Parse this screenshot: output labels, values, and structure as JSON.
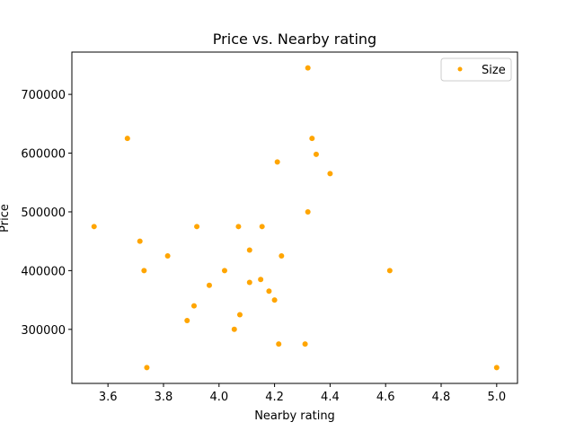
{
  "chart_data": {
    "type": "scatter",
    "title": "Price vs. Nearby rating",
    "xlabel": "Nearby rating",
    "ylabel": "Price",
    "xlim": [
      3.47,
      5.075
    ],
    "ylim": [
      208000,
      772000
    ],
    "xticks": [
      3.6,
      3.8,
      4.0,
      4.2,
      4.4,
      4.6,
      4.8,
      5.0
    ],
    "xtick_labels": [
      "3.6",
      "3.8",
      "4.0",
      "4.2",
      "4.4",
      "4.6",
      "4.8",
      "5.0"
    ],
    "yticks": [
      300000,
      400000,
      500000,
      600000,
      700000
    ],
    "ytick_labels": [
      "300000",
      "400000",
      "500000",
      "600000",
      "700000"
    ],
    "grid": false,
    "legend": {
      "position": "top-right",
      "entries": [
        "Size"
      ]
    },
    "series": [
      {
        "name": "Size",
        "color": "#ffa500",
        "x": [
          4.32,
          3.67,
          4.335,
          4.35,
          4.21,
          4.4,
          4.32,
          3.55,
          3.92,
          4.07,
          4.155,
          3.715,
          4.11,
          3.815,
          4.225,
          3.73,
          4.02,
          4.615,
          4.15,
          4.11,
          3.965,
          4.18,
          4.2,
          3.91,
          4.075,
          3.885,
          4.055,
          4.215,
          4.31,
          3.74,
          5.0
        ],
        "y": [
          745000,
          625000,
          625000,
          598000,
          585000,
          565000,
          500000,
          475000,
          475000,
          475000,
          475000,
          450000,
          435000,
          425000,
          425000,
          400000,
          400000,
          400000,
          385000,
          380000,
          375000,
          365000,
          350000,
          340000,
          325000,
          315000,
          300000,
          275000,
          275000,
          235000,
          235000
        ]
      }
    ]
  }
}
